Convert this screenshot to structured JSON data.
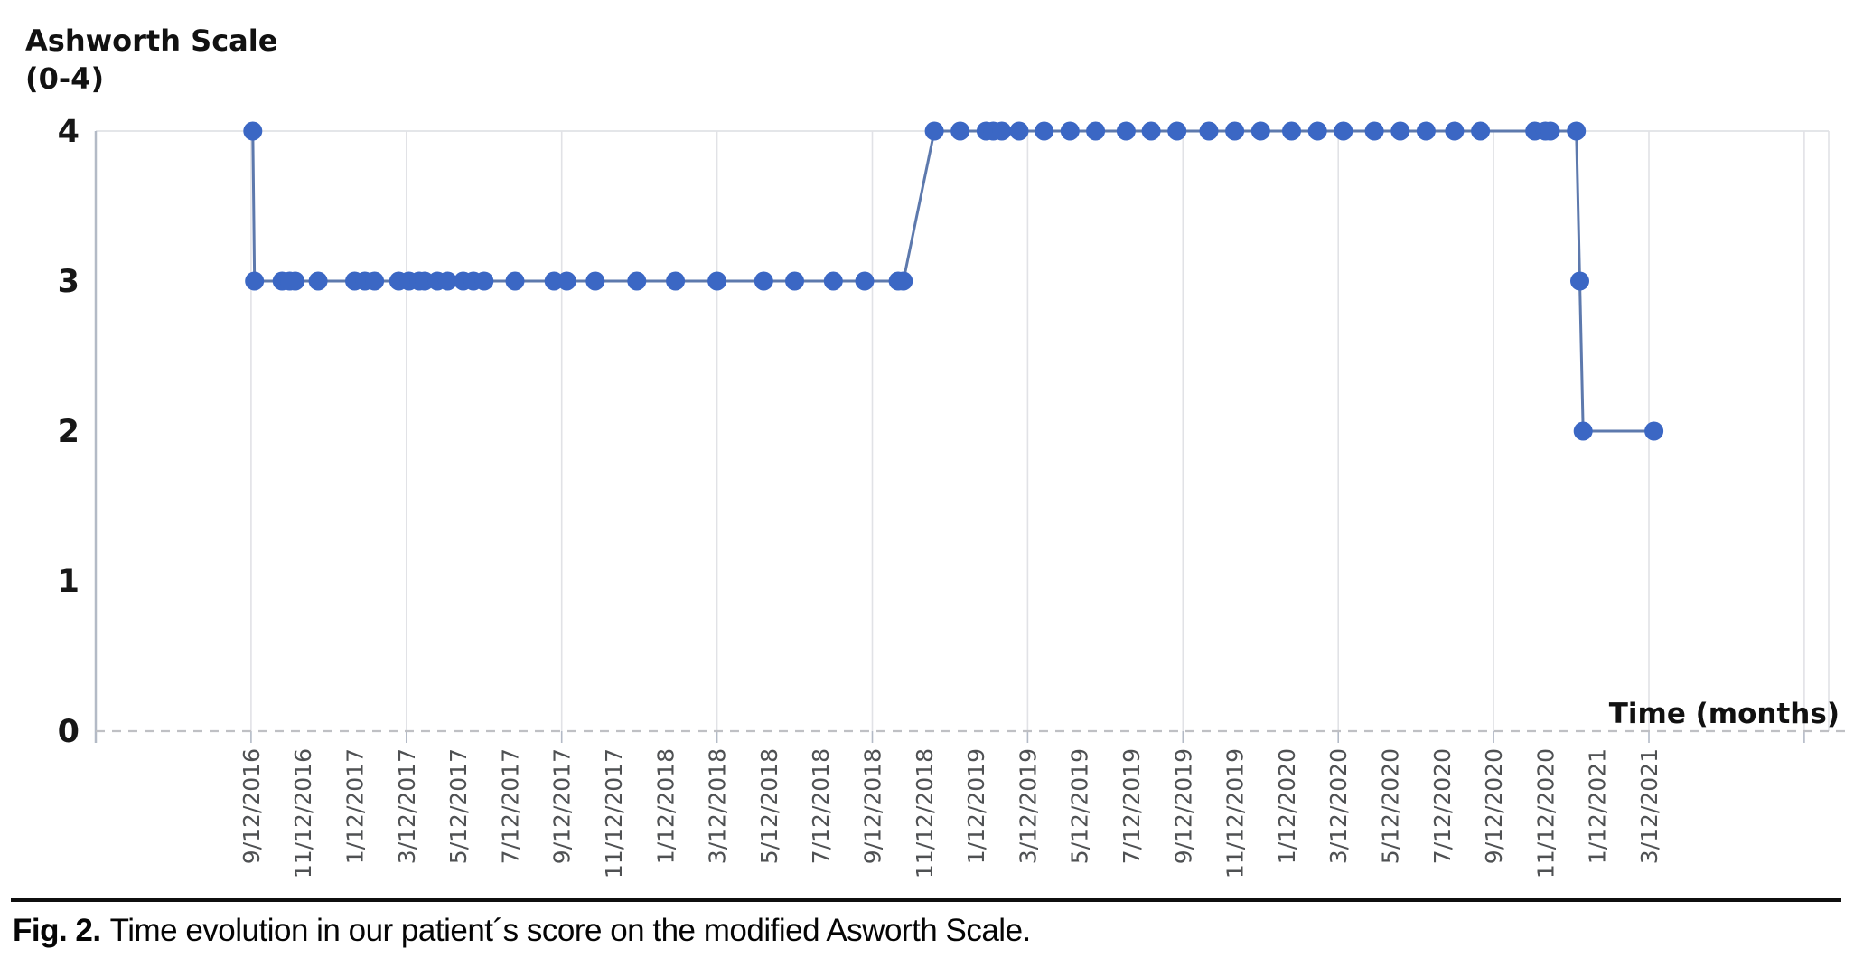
{
  "figure": {
    "caption_label": "Fig. 2.",
    "caption_text": "Time evolution in our patient´s score on the modified Asworth Scale."
  },
  "chart": {
    "title_line1": "Ashworth Scale",
    "title_line2": "(0-4)",
    "x_axis_title": "Time (months)"
  },
  "chart_data": {
    "type": "line",
    "title": "Ashworth Scale (0-4)",
    "xlabel": "Time (months)",
    "ylabel": "Ashworth Scale (0-4)",
    "ylim": [
      0,
      4
    ],
    "yticks": [
      4,
      3,
      2,
      1,
      0
    ],
    "x_tick_labels": [
      "9/12/2016",
      "11/12/2016",
      "1/12/2017",
      "3/12/2017",
      "5/12/2017",
      "7/12/2017",
      "9/12/2017",
      "11/12/2017",
      "1/12/2018",
      "3/12/2018",
      "5/12/2018",
      "7/12/2018",
      "9/12/2018",
      "11/12/2018",
      "1/12/2019",
      "3/12/2019",
      "5/12/2019",
      "7/12/2019",
      "9/12/2019",
      "11/12/2019",
      "1/12/2020",
      "3/12/2020",
      "5/12/2020",
      "7/12/2020",
      "9/12/2020",
      "11/12/2020",
      "1/12/2021",
      "3/12/2021"
    ],
    "x_domain_start": "3/12/2016",
    "x_domain_end": "10/12/2021",
    "gridlines": "vertical every 6 months from 9/12/2016 to 9/12/2021; horizontal gridline at y=4; dashed baseline at y=0",
    "legend": "none",
    "marker_color": "#3b67c4",
    "line_color": "#5d79ad",
    "gridline_color": "#e1e2e6",
    "axis_color": "#b3bac6",
    "dashed_baseline_color": "#bfc0c4",
    "points": [
      {
        "date": "9/14/2016",
        "score": 4
      },
      {
        "date": "9/16/2016",
        "score": 3
      },
      {
        "date": "10/18/2016",
        "score": 3
      },
      {
        "date": "10/27/2016",
        "score": 3
      },
      {
        "date": "11/3/2016",
        "score": 3
      },
      {
        "date": "11/30/2016",
        "score": 3
      },
      {
        "date": "1/12/2017",
        "score": 3
      },
      {
        "date": "1/24/2017",
        "score": 3
      },
      {
        "date": "2/5/2017",
        "score": 3
      },
      {
        "date": "3/3/2017",
        "score": 3
      },
      {
        "date": "3/15/2017",
        "score": 3
      },
      {
        "date": "3/27/2017",
        "score": 3
      },
      {
        "date": "4/3/2017",
        "score": 3
      },
      {
        "date": "4/18/2017",
        "score": 3
      },
      {
        "date": "4/30/2017",
        "score": 3
      },
      {
        "date": "5/18/2017",
        "score": 3
      },
      {
        "date": "5/30/2017",
        "score": 3
      },
      {
        "date": "6/12/2017",
        "score": 3
      },
      {
        "date": "7/18/2017",
        "score": 3
      },
      {
        "date": "9/3/2017",
        "score": 3
      },
      {
        "date": "9/18/2017",
        "score": 3
      },
      {
        "date": "10/21/2017",
        "score": 3
      },
      {
        "date": "12/9/2017",
        "score": 3
      },
      {
        "date": "1/24/2018",
        "score": 3
      },
      {
        "date": "3/12/2018",
        "score": 3
      },
      {
        "date": "5/6/2018",
        "score": 3
      },
      {
        "date": "6/12/2018",
        "score": 3
      },
      {
        "date": "7/27/2018",
        "score": 3
      },
      {
        "date": "9/3/2018",
        "score": 3
      },
      {
        "date": "10/12/2018",
        "score": 3
      },
      {
        "date": "10/18/2018",
        "score": 3
      },
      {
        "date": "11/24/2018",
        "score": 4
      },
      {
        "date": "12/24/2018",
        "score": 4
      },
      {
        "date": "1/24/2019",
        "score": 4
      },
      {
        "date": "2/2/2019",
        "score": 4
      },
      {
        "date": "2/12/2019",
        "score": 4
      },
      {
        "date": "3/2/2019",
        "score": 4
      },
      {
        "date": "4/1/2019",
        "score": 4
      },
      {
        "date": "5/1/2019",
        "score": 4
      },
      {
        "date": "5/31/2019",
        "score": 4
      },
      {
        "date": "7/6/2019",
        "score": 4
      },
      {
        "date": "8/5/2019",
        "score": 4
      },
      {
        "date": "9/5/2019",
        "score": 4
      },
      {
        "date": "10/12/2019",
        "score": 4
      },
      {
        "date": "11/12/2019",
        "score": 4
      },
      {
        "date": "12/12/2019",
        "score": 4
      },
      {
        "date": "1/18/2020",
        "score": 4
      },
      {
        "date": "2/18/2020",
        "score": 4
      },
      {
        "date": "3/18/2020",
        "score": 4
      },
      {
        "date": "4/24/2020",
        "score": 4
      },
      {
        "date": "5/24/2020",
        "score": 4
      },
      {
        "date": "6/24/2020",
        "score": 4
      },
      {
        "date": "7/27/2020",
        "score": 4
      },
      {
        "date": "8/27/2020",
        "score": 4
      },
      {
        "date": "10/30/2020",
        "score": 4
      },
      {
        "date": "11/12/2020",
        "score": 4
      },
      {
        "date": "11/18/2020",
        "score": 4
      },
      {
        "date": "12/18/2020",
        "score": 4
      },
      {
        "date": "12/22/2020",
        "score": 3
      },
      {
        "date": "12/26/2020",
        "score": 2
      },
      {
        "date": "3/18/2021",
        "score": 2
      }
    ]
  }
}
